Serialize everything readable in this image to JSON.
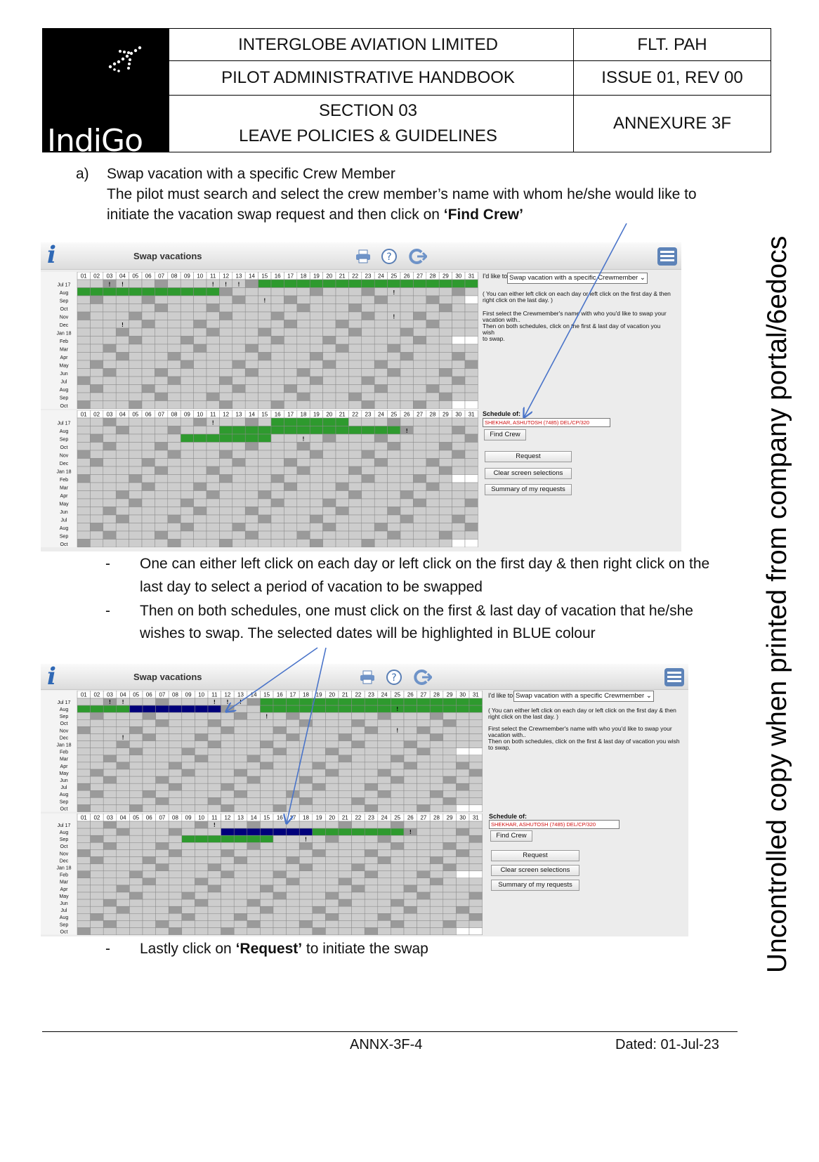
{
  "header": {
    "company": "INTERGLOBE AVIATION LIMITED",
    "doc_code": "FLT. PAH",
    "handbook": "PILOT ADMINISTRATIVE HANDBOOK",
    "issue": "ISSUE 01, REV 00",
    "section": "SECTION 03",
    "section_title": "LEAVE POLICIES & GUIDELINES",
    "annexure": "ANNEXURE 3F",
    "logo_text": "IndiGo"
  },
  "body": {
    "item_marker": "a)",
    "item_title": "Swap vacation with a specific Crew Member",
    "para1_line1": "The pilot must search and select the crew member’s name with whom he/she would like to",
    "para1_line2_pre": "initiate the vacation swap request and then click on ",
    "para1_line2_bold": "‘Find Crew’",
    "bullet_marker": "-",
    "bullet1_line1": "One can either left click on each day or left click on the first day & then right click on the",
    "bullet1_line2": "last day to select a period of vacation to be swapped",
    "bullet2_line1": "Then on both schedules, one must click on the first & last day of vacation that he/she",
    "bullet2_line2": "wishes to swap. The selected dates will be highlighted in BLUE colour",
    "bullet3_pre": "Lastly click on ",
    "bullet3_bold": "‘Request’",
    "bullet3_post": " to initiate the swap"
  },
  "app": {
    "title": "Swap vacations",
    "id_like_label": "I'd like to",
    "mode_selected": "Swap vacation with a specific Crewmember",
    "help_line1": "( You can either left click on each day or left click on the first day & then",
    "help_line2": "right click on the last day. )",
    "help_line3": "First select the Crewmember's name with who you'd like to swap your",
    "help_line4": "vacation with..",
    "help_line5": "Then on both schedules, click on the first & last day of vacation you wish",
    "help_line6": "to swap.",
    "schedule_of_label": "Schedule of:",
    "schedule_of_value": "SHEKHAR, ASHUTOSH (7485) DEL/CP/320",
    "find_crew_label": "Find Crew",
    "request_label": "Request",
    "clear_label": "Clear screen selections",
    "summary_label": "Summary of my requests",
    "days": [
      "01",
      "02",
      "03",
      "04",
      "05",
      "06",
      "07",
      "08",
      "09",
      "10",
      "11",
      "12",
      "13",
      "14",
      "15",
      "16",
      "17",
      "18",
      "19",
      "20",
      "21",
      "22",
      "23",
      "24",
      "25",
      "26",
      "27",
      "28",
      "29",
      "30",
      "31"
    ],
    "months": [
      "Jul 17",
      "Aug",
      "Sep",
      "Oct",
      "Nov",
      "Dec",
      "Jan 18",
      "Feb",
      "Mar",
      "Apr",
      "May",
      "Jun",
      "Jul",
      "Aug",
      "Sep",
      "Oct"
    ],
    "mark": "!"
  },
  "footer": {
    "ref": "ANNX-3F-4",
    "dated": "Dated: 01-Jul-23",
    "watermark": "Uncontrolled copy when printed from company portal/6edocs"
  },
  "colors": {
    "green": "#2e9a2e",
    "blue": "#00007a",
    "dark_cell": "#9a9a9a",
    "light_cell": "#cdcdcd",
    "arrow": "#4a74c9"
  }
}
